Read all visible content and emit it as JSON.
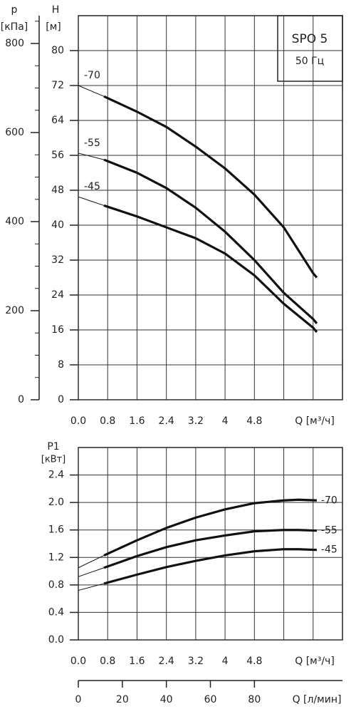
{
  "chart_data": [
    {
      "type": "line",
      "title": "SPO 5",
      "subtitle": "50 Гц",
      "ylabel": "H",
      "yunit": "[м]",
      "y2label": "p",
      "y2unit": "[кПа]",
      "xlabel": "Q [м³/ч]",
      "xlim": [
        0,
        7.2
      ],
      "ylim": [
        0,
        88
      ],
      "y2lim": [
        0,
        862.4
      ],
      "xticks": [
        {
          "value": 0,
          "label": "0.0"
        },
        0.8,
        1.6,
        2.4,
        3.2,
        4.0,
        4.8
      ],
      "xgrid_unlabeled": [
        5.6,
        6.4
      ],
      "yticks": [
        0,
        8,
        16,
        24,
        32,
        40,
        48,
        56,
        64,
        72,
        80
      ],
      "y2ticks": [
        0,
        200,
        400,
        600,
        800
      ],
      "y2minor": [
        50,
        100,
        150,
        250,
        300,
        350,
        450,
        500,
        550,
        650,
        700,
        750,
        850
      ],
      "grid": true,
      "x": [
        0,
        0.7,
        1.6,
        2.4,
        3.2,
        4.0,
        4.8,
        5.6,
        6.4,
        6.5
      ],
      "series": [
        {
          "name": "-70",
          "color": "#111111",
          "values": [
            72,
            69.5,
            66,
            62.5,
            58,
            53,
            47,
            39.5,
            29,
            28
          ]
        },
        {
          "name": "-55",
          "color": "#111111",
          "values": [
            56.5,
            55,
            52,
            48.5,
            44,
            38.5,
            32,
            24.5,
            18.5,
            17.5
          ]
        },
        {
          "name": "-45",
          "color": "#111111",
          "values": [
            46.5,
            44.5,
            42,
            39.5,
            37,
            33.5,
            28.5,
            22,
            16.5,
            15.5
          ]
        }
      ]
    },
    {
      "type": "line",
      "ylabel": "P1",
      "yunit": "[кВт]",
      "xlabel": "Q [м³/ч]",
      "xlim": [
        0,
        7.2
      ],
      "ylim": [
        0,
        2.8
      ],
      "xticks": [
        {
          "value": 0,
          "label": "0.0"
        },
        0.8,
        1.6,
        2.4,
        3.2,
        4.0,
        4.8
      ],
      "xgrid_unlabeled": [
        5.6,
        6.4
      ],
      "yticks": [
        {
          "value": 0,
          "label": "0.0"
        },
        0.4,
        0.8,
        1.2,
        1.6,
        {
          "value": 2,
          "label": "2.0"
        },
        2.4
      ],
      "grid": true,
      "x": [
        0,
        0.7,
        1.6,
        2.4,
        3.2,
        4.0,
        4.8,
        5.6,
        6.0,
        6.5
      ],
      "series": [
        {
          "name": "-70",
          "color": "#111111",
          "values": [
            1.05,
            1.23,
            1.45,
            1.63,
            1.78,
            1.9,
            1.99,
            2.03,
            2.04,
            2.03
          ]
        },
        {
          "name": "-55",
          "color": "#111111",
          "values": [
            0.92,
            1.05,
            1.22,
            1.35,
            1.45,
            1.52,
            1.58,
            1.6,
            1.6,
            1.59
          ]
        },
        {
          "name": "-45",
          "color": "#111111",
          "values": [
            0.72,
            0.82,
            0.95,
            1.06,
            1.15,
            1.23,
            1.29,
            1.32,
            1.32,
            1.31
          ]
        }
      ]
    },
    {
      "type": "axis",
      "xlabel": "Q [л/мин]",
      "xlim": [
        0,
        120
      ],
      "xticks": [
        0,
        20,
        40,
        60,
        80
      ]
    }
  ]
}
